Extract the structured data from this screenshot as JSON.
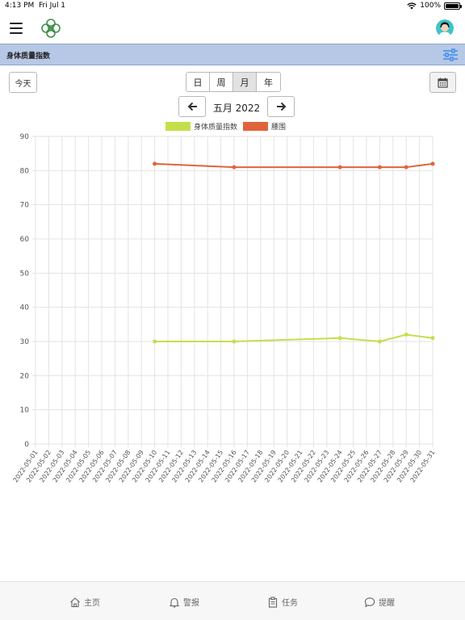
{
  "status": {
    "time": "4:13 PM",
    "date": "Fri Jul 1",
    "battery": "100%",
    "battery_level": 1.0
  },
  "header": {
    "menu_icon": "hamburger-menu-icon",
    "logo_icon": "flower-logo-icon",
    "avatar_icon": "user-avatar-icon"
  },
  "section": {
    "title": "身体质量指数",
    "filter_icon": "sliders-filter-icon"
  },
  "controls": {
    "today_label": "今天",
    "periods": [
      {
        "label": "日",
        "active": false
      },
      {
        "label": "周",
        "active": false
      },
      {
        "label": "月",
        "active": true
      },
      {
        "label": "年",
        "active": false
      }
    ],
    "calendar_icon": "calendar-icon",
    "prev_icon": "arrow-left-icon",
    "next_icon": "arrow-right-icon",
    "current_month": "五月 2022"
  },
  "colors": {
    "bmi": "#c3e04b",
    "waist": "#e0643a",
    "header_band": "#b6c8e6",
    "accent": "#3a8ee6"
  },
  "chart_data": {
    "type": "line",
    "title": "",
    "xlabel": "",
    "ylabel": "",
    "ylim": [
      0,
      90
    ],
    "yticks": [
      0,
      10,
      20,
      30,
      40,
      50,
      60,
      70,
      80,
      90
    ],
    "grid": true,
    "legend_placement": "top-center",
    "x": [
      "2022-05-01",
      "2022-05-02",
      "2022-05-03",
      "2022-05-04",
      "2022-05-05",
      "2022-05-06",
      "2022-05-07",
      "2022-05-08",
      "2022-05-09",
      "2022-05-10",
      "2022-05-11",
      "2022-05-12",
      "2022-05-13",
      "2022-05-14",
      "2022-05-15",
      "2022-05-16",
      "2022-05-17",
      "2022-05-18",
      "2022-05-19",
      "2022-05-20",
      "2022-05-21",
      "2022-05-22",
      "2022-05-23",
      "2022-05-24",
      "2022-05-25",
      "2022-05-26",
      "2022-05-27",
      "2022-05-28",
      "2022-05-29",
      "2022-05-30",
      "2022-05-31"
    ],
    "series": [
      {
        "name": "身体质量指数",
        "color": "#c3e04b",
        "points": [
          {
            "x": "2022-05-10",
            "y": 30
          },
          {
            "x": "2022-05-16",
            "y": 30
          },
          {
            "x": "2022-05-24",
            "y": 31
          },
          {
            "x": "2022-05-27",
            "y": 30
          },
          {
            "x": "2022-05-29",
            "y": 32
          },
          {
            "x": "2022-05-31",
            "y": 31
          }
        ]
      },
      {
        "name": "腰围",
        "color": "#e0643a",
        "points": [
          {
            "x": "2022-05-10",
            "y": 82
          },
          {
            "x": "2022-05-16",
            "y": 81
          },
          {
            "x": "2022-05-24",
            "y": 81
          },
          {
            "x": "2022-05-27",
            "y": 81
          },
          {
            "x": "2022-05-29",
            "y": 81
          },
          {
            "x": "2022-05-31",
            "y": 82
          }
        ]
      }
    ]
  },
  "tabs": [
    {
      "label": "主页",
      "icon": "home-icon"
    },
    {
      "label": "警报",
      "icon": "bell-icon"
    },
    {
      "label": "任务",
      "icon": "clipboard-icon"
    },
    {
      "label": "提醒",
      "icon": "chat-bubble-icon"
    }
  ]
}
